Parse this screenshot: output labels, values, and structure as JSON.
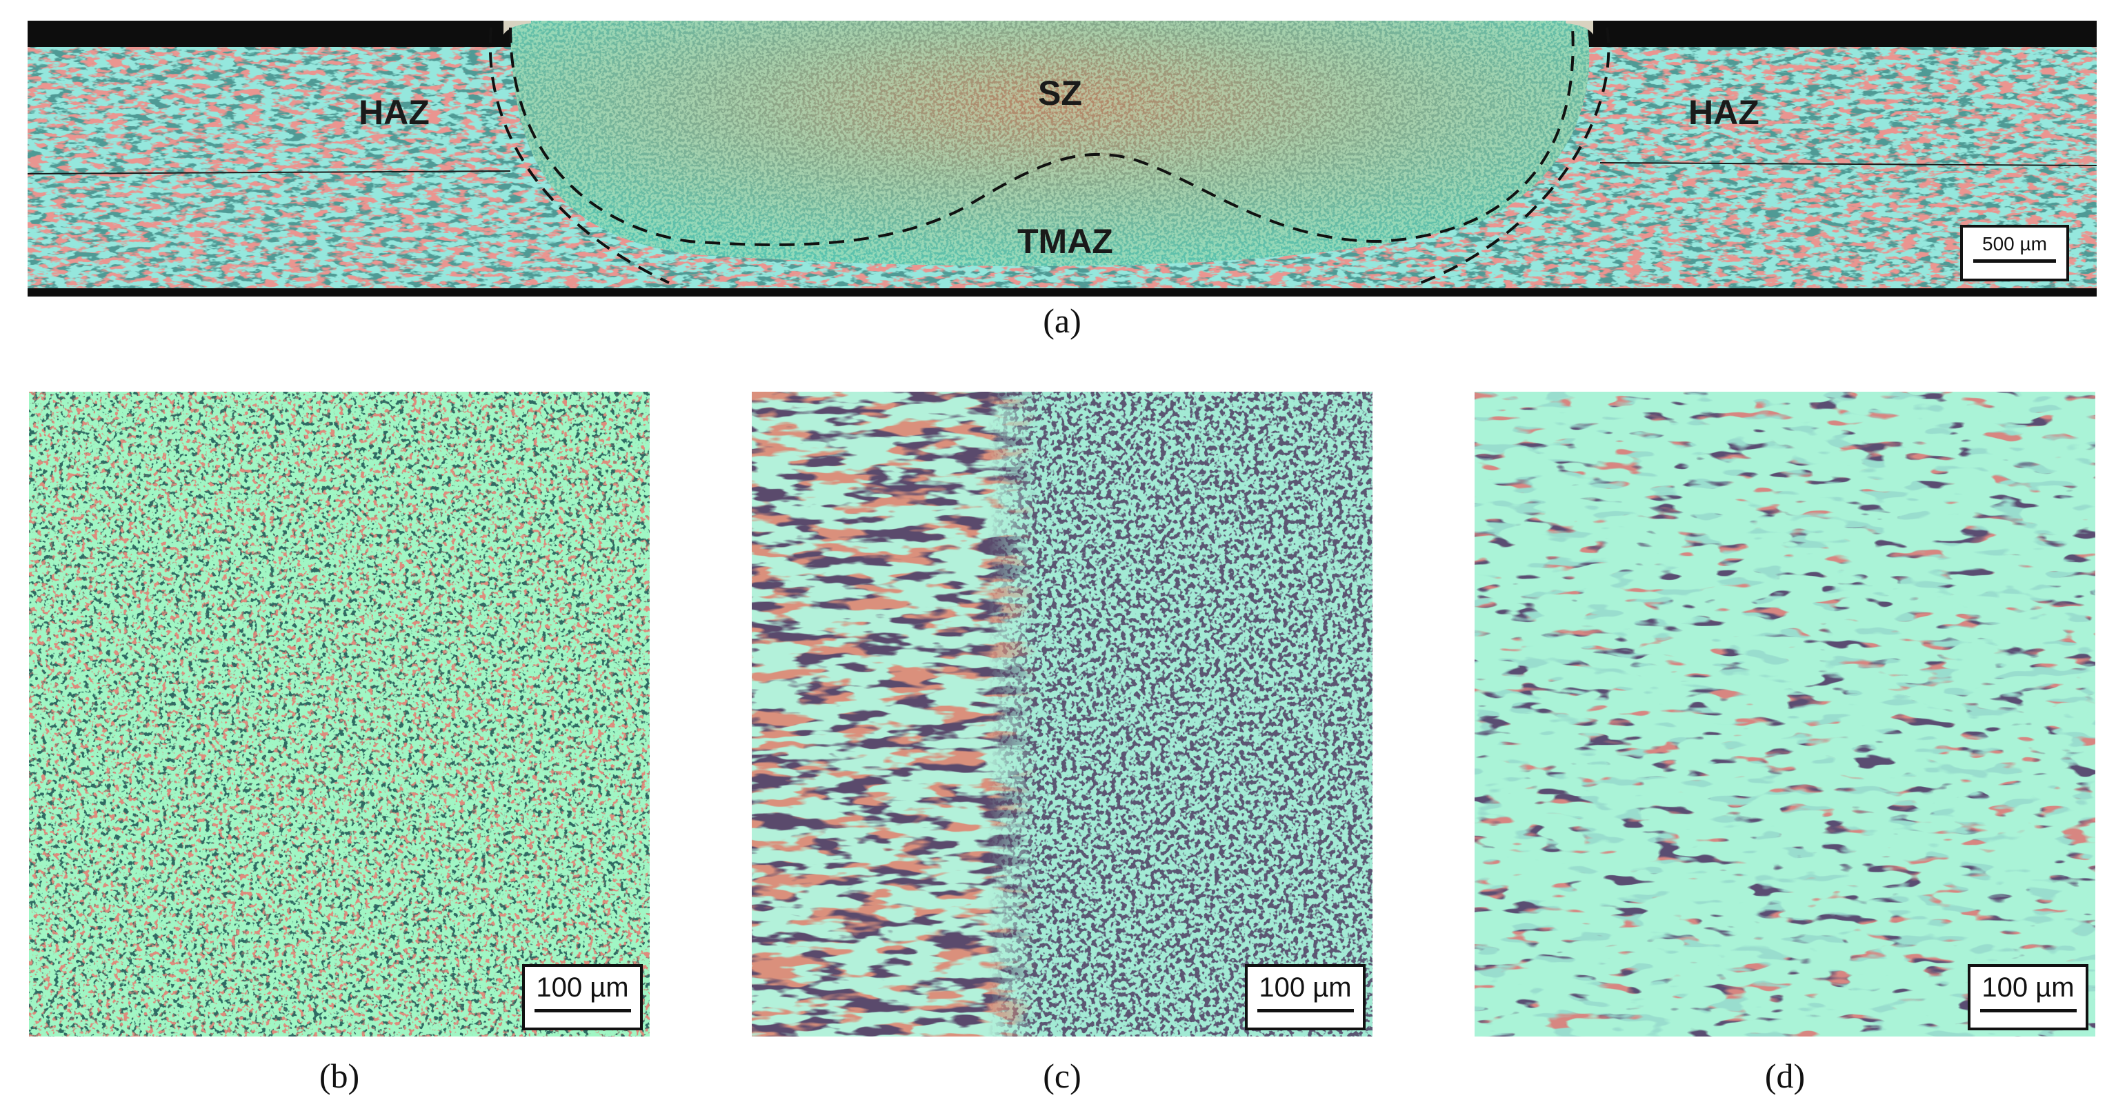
{
  "figure": {
    "panel_a": {
      "caption": "(a)",
      "zones": {
        "haz_left": "HAZ",
        "sz": "SZ",
        "haz_right": "HAZ",
        "tmaz": "TMAZ"
      },
      "scale_bar": "500 µm"
    },
    "panel_b": {
      "caption": "(b)",
      "scale_bar": "100 µm"
    },
    "panel_c": {
      "caption": "(c)",
      "scale_bar": "100 µm"
    },
    "panel_d": {
      "caption": "(d)",
      "scale_bar": "100 µm"
    }
  },
  "colors": {
    "red_phase": "#b5453a",
    "cyan_phase": "#2fb8a0",
    "green_phase": "#48e0a0",
    "purple_matrix": "#6a4f7a",
    "teal_matrix": "#3a7a6e",
    "boundary_line": "#111111"
  }
}
